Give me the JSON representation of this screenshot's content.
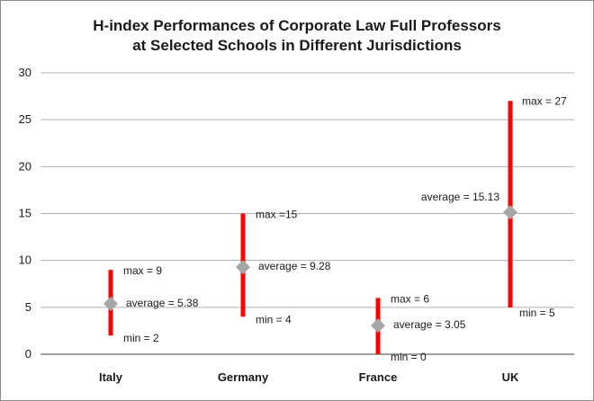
{
  "chart_data": {
    "type": "range",
    "title_lines": [
      "H-index Performances of Corporate Law Full Professors",
      "at Selected Schools in Different Jurisdictions"
    ],
    "xlabel": "",
    "ylabel": "",
    "ylim": [
      0,
      30
    ],
    "yticks": [
      0,
      5,
      10,
      15,
      20,
      25,
      30
    ],
    "grid": true,
    "legend": "none",
    "colors": {
      "range_bar": "#ff0000",
      "average_marker": "#a6a6a6",
      "grid": "#b0b0b0"
    },
    "categories": [
      "Italy",
      "Germany",
      "France",
      "UK"
    ],
    "series": [
      {
        "name": "max",
        "values": [
          9,
          15,
          6,
          27
        ]
      },
      {
        "name": "average",
        "values": [
          5.38,
          9.28,
          3.05,
          15.13
        ]
      },
      {
        "name": "min",
        "values": [
          2,
          4,
          0,
          5
        ]
      }
    ],
    "labels": {
      "max": [
        "max = 9",
        "max =15",
        "max = 6",
        "max = 27"
      ],
      "average": [
        "average = 5.38",
        "average = 9.28",
        "average = 3.05",
        "average = 15.13"
      ],
      "min": [
        "min = 2",
        "min = 4",
        "min = 0",
        "min = 5"
      ]
    }
  }
}
